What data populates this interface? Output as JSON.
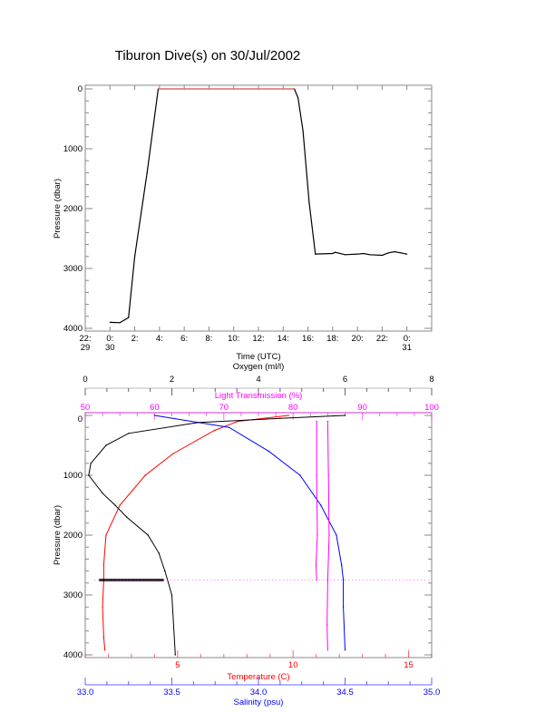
{
  "title": "Tiburon Dive(s) on 30/Jul/2002",
  "chart_data": [
    {
      "type": "line",
      "xlabel": "Time (UTC)",
      "ylabel": "Pressure (dbar)",
      "x_units": "hours from 0:00 on 30/Jul/2002",
      "xlim": [
        -2,
        26
      ],
      "ylim": [
        4000,
        0
      ],
      "x_ticks": [
        {
          "value": -2,
          "label1": "22:",
          "label2": "29"
        },
        {
          "value": 0,
          "label1": "0:",
          "label2": "30"
        },
        {
          "value": 2,
          "label1": "2:",
          "label2": ""
        },
        {
          "value": 4,
          "label1": "4:",
          "label2": ""
        },
        {
          "value": 6,
          "label1": "6:",
          "label2": ""
        },
        {
          "value": 8,
          "label1": "8:",
          "label2": ""
        },
        {
          "value": 10,
          "label1": "10:",
          "label2": ""
        },
        {
          "value": 12,
          "label1": "12:",
          "label2": ""
        },
        {
          "value": 14,
          "label1": "14:",
          "label2": ""
        },
        {
          "value": 16,
          "label1": "16:",
          "label2": ""
        },
        {
          "value": 18,
          "label1": "18:",
          "label2": ""
        },
        {
          "value": 20,
          "label1": "20:",
          "label2": ""
        },
        {
          "value": 22,
          "label1": "22:",
          "label2": ""
        },
        {
          "value": 24,
          "label1": "0:",
          "label2": "31"
        }
      ],
      "y_ticks": [
        "0",
        "1000",
        "2000",
        "3000",
        "4000"
      ],
      "grid": false,
      "series": [
        {
          "color": "#000000",
          "points": [
            [
              0,
              3900
            ],
            [
              0.8,
              3905
            ],
            [
              1.5,
              3820
            ],
            [
              2.0,
              2800
            ],
            [
              3.0,
              1400
            ],
            [
              3.9,
              0
            ],
            [
              14.9,
              0
            ],
            [
              15.2,
              150
            ],
            [
              15.6,
              700
            ],
            [
              16.1,
              1900
            ],
            [
              16.6,
              2760
            ],
            [
              18.0,
              2750
            ],
            [
              18.2,
              2730
            ],
            [
              19.0,
              2770
            ],
            [
              20.0,
              2760
            ],
            [
              20.5,
              2750
            ],
            [
              21.0,
              2770
            ],
            [
              22.0,
              2780
            ],
            [
              22.5,
              2740
            ],
            [
              23.0,
              2720
            ],
            [
              23.5,
              2740
            ],
            [
              24.0,
              2760
            ]
          ]
        }
      ]
    },
    {
      "type": "line",
      "ylabel": "Pressure (dbar)",
      "ylim": [
        4000,
        0
      ],
      "y_ticks": [
        "0",
        "1000",
        "2000",
        "3000",
        "4000"
      ],
      "grid": false,
      "axes": {
        "oxygen": {
          "label": "Oxygen (ml/l)",
          "range": [
            0,
            8
          ],
          "ticks": [
            "0",
            "2",
            "4",
            "6",
            "8"
          ],
          "color": "#000000",
          "position": "top"
        },
        "light": {
          "label": "Light Transmission (%)",
          "range": [
            50,
            100
          ],
          "ticks": [
            "50",
            "60",
            "70",
            "80",
            "90",
            "100"
          ],
          "color": "#ff00ff",
          "position": "top"
        },
        "temperature": {
          "label": "Temperature (C)",
          "range": [
            1,
            16
          ],
          "ticks": [
            "5",
            "10",
            "15"
          ],
          "color": "#ff0000",
          "position": "bottom"
        },
        "salinity": {
          "label": "Salinity (psu)",
          "range": [
            33.0,
            35.0
          ],
          "ticks": [
            "33.0",
            "33.5",
            "34.0",
            "34.5",
            "35.0"
          ],
          "color": "#0000ff",
          "position": "bottom"
        }
      },
      "series": [
        {
          "axis": "temperature",
          "color": "#ff0000",
          "points": [
            [
              9.8,
              0
            ],
            [
              7.6,
              100
            ],
            [
              6.6,
              250
            ],
            [
              4.8,
              640
            ],
            [
              3.6,
              1000
            ],
            [
              2.5,
              1500
            ],
            [
              1.9,
              2000
            ],
            [
              1.8,
              2500
            ],
            [
              1.8,
              2750
            ],
            [
              1.75,
              3200
            ],
            [
              1.8,
              3700
            ],
            [
              1.85,
              3920
            ]
          ]
        },
        {
          "axis": "salinity",
          "color": "#0000ff",
          "points": [
            [
              33.4,
              0
            ],
            [
              33.83,
              200
            ],
            [
              34.06,
              600
            ],
            [
              34.24,
              1000
            ],
            [
              34.36,
              1500
            ],
            [
              34.45,
              2000
            ],
            [
              34.48,
              2500
            ],
            [
              34.49,
              2750
            ],
            [
              34.49,
              3200
            ],
            [
              34.5,
              3920
            ]
          ]
        },
        {
          "axis": "oxygen",
          "color": "#000000",
          "points": [
            [
              6.0,
              0
            ],
            [
              4.5,
              50
            ],
            [
              2.6,
              120
            ],
            [
              1.0,
              300
            ],
            [
              0.48,
              500
            ],
            [
              0.13,
              800
            ],
            [
              0.08,
              1000
            ],
            [
              0.4,
              1300
            ],
            [
              0.69,
              1500
            ],
            [
              0.96,
              1700
            ],
            [
              1.45,
              2000
            ],
            [
              1.7,
              2300
            ],
            [
              1.84,
              2600
            ],
            [
              2.0,
              3000
            ],
            [
              2.08,
              4000
            ]
          ]
        },
        {
          "axis": "light",
          "color": "#ff00ff",
          "points": [
            [
              83.4,
              100
            ],
            [
              83.4,
              1000
            ],
            [
              83.5,
              2000
            ],
            [
              83.3,
              2500
            ],
            [
              83.4,
              2750
            ]
          ]
        },
        {
          "axis": "light",
          "color": "#ff00ff",
          "points": [
            [
              85.0,
              100
            ],
            [
              85.1,
              1000
            ],
            [
              85.2,
              2000
            ],
            [
              85.0,
              2750
            ],
            [
              84.9,
              3500
            ],
            [
              85.0,
              3920
            ]
          ]
        }
      ]
    }
  ]
}
